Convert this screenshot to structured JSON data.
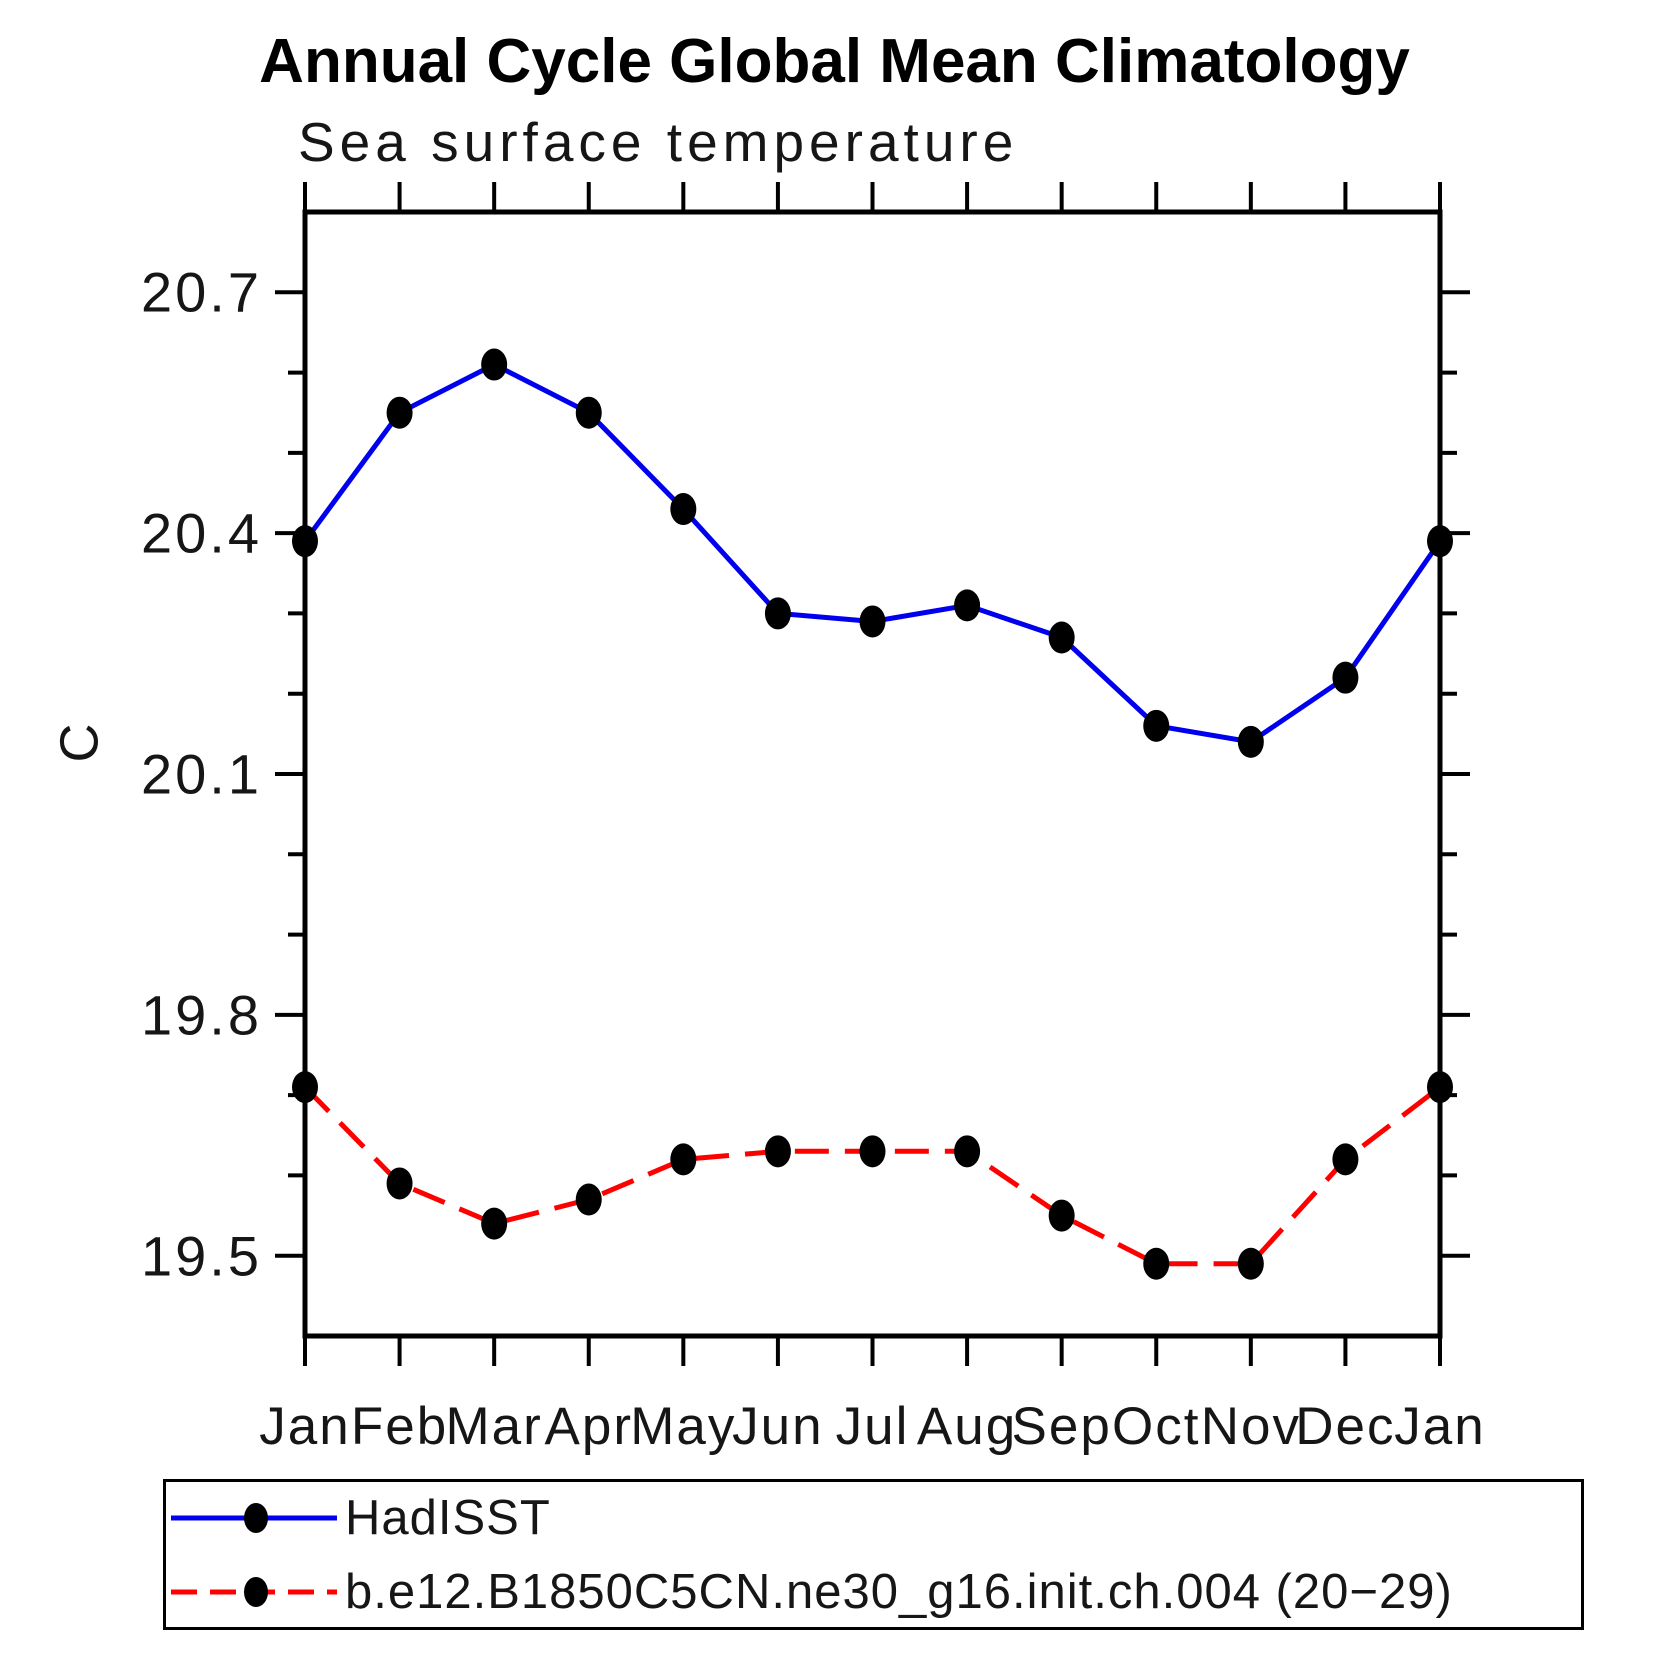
{
  "header": {
    "title": "Annual Cycle Global Mean Climatology",
    "subtitle": "Sea surface temperature"
  },
  "chart_data": {
    "type": "line",
    "title": "Annual Cycle Global Mean Climatology",
    "subtitle": "Sea surface temperature",
    "xlabel": "",
    "ylabel": "C",
    "x_categories": [
      "Jan",
      "Feb",
      "Mar",
      "Apr",
      "May",
      "Jun",
      "Jul",
      "Aug",
      "Sep",
      "Oct",
      "Nov",
      "Dec",
      "Jan"
    ],
    "ylim": [
      19.4,
      20.8
    ],
    "y_major_ticks": [
      19.5,
      19.8,
      20.1,
      20.4,
      20.7
    ],
    "y_minor_step": 0.1,
    "grid": false,
    "legend_position": "bottom-left-box",
    "series": [
      {
        "name": "HadISST",
        "color": "#0000ee",
        "line_style": "solid",
        "marker": "filled-black-circle",
        "values": [
          20.39,
          20.55,
          20.61,
          20.55,
          20.43,
          20.3,
          20.29,
          20.31,
          20.27,
          20.16,
          20.14,
          20.22,
          20.39
        ]
      },
      {
        "name": "b.e12.B1850C5CN.ne30_g16.init.ch.004 (20−29)",
        "color": "#ff0000",
        "line_style": "dashed",
        "marker": "filled-black-circle",
        "values": [
          19.71,
          19.59,
          19.54,
          19.57,
          19.62,
          19.63,
          19.63,
          19.63,
          19.55,
          19.49,
          19.49,
          19.62,
          19.71
        ]
      }
    ]
  },
  "colors": {
    "axis": "#000000",
    "text": "#161616",
    "marker": "#000000",
    "background": "#ffffff"
  }
}
